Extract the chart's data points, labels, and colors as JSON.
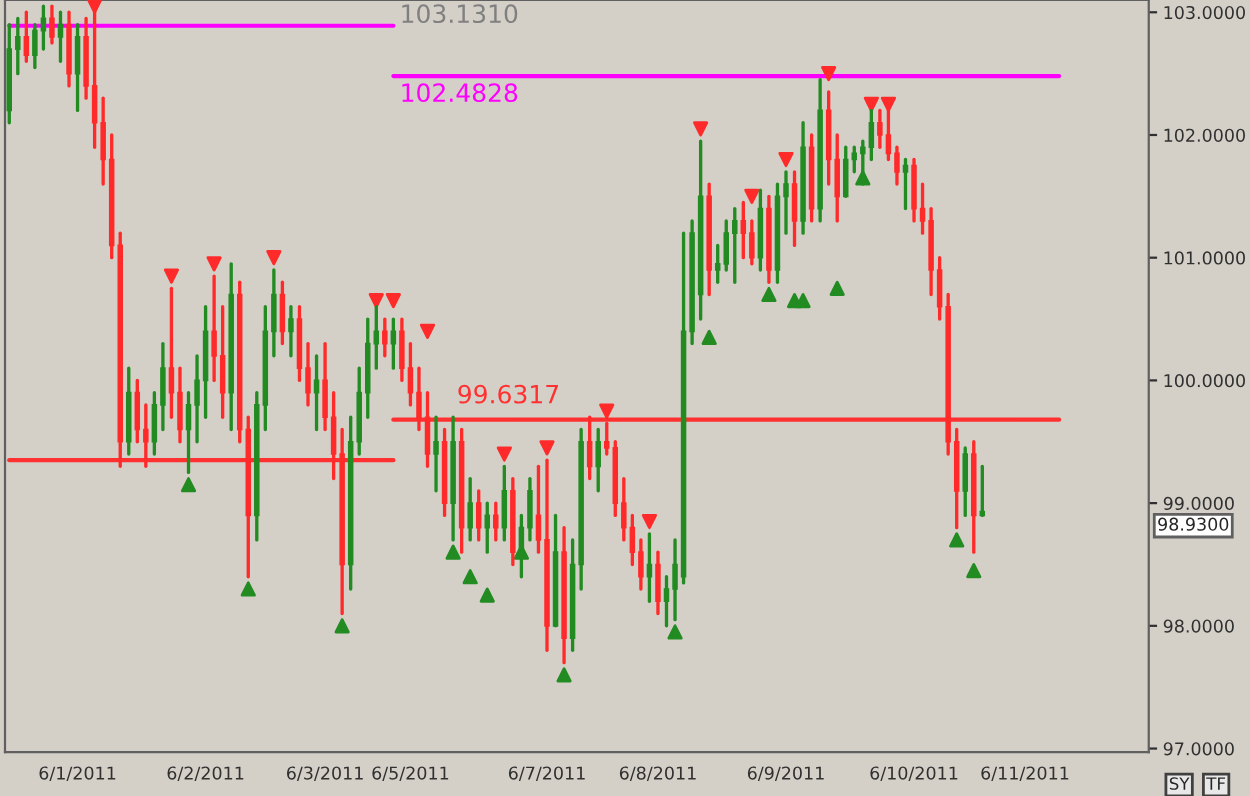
{
  "chart_data": {
    "type": "candlestick",
    "categories": [
      null,
      null,
      null,
      null,
      null,
      null,
      null,
      null,
      "6/1/2011",
      null,
      null,
      null,
      null,
      null,
      null,
      null,
      null,
      null,
      null,
      null,
      null,
      null,
      null,
      "6/2/2011",
      null,
      null,
      null,
      null,
      null,
      null,
      null,
      null,
      null,
      null,
      null,
      null,
      null,
      "6/3/2011",
      null,
      null,
      null,
      null,
      null,
      null,
      null,
      null,
      null,
      "6/5/2011",
      null,
      null,
      null,
      null,
      null,
      null,
      null,
      null,
      null,
      null,
      null,
      null,
      null,
      null,
      null,
      "6/7/2011",
      null,
      null,
      null,
      null,
      null,
      null,
      null,
      null,
      null,
      null,
      null,
      null,
      "6/8/2011",
      null,
      null,
      null,
      null,
      null,
      null,
      null,
      null,
      null,
      null,
      null,
      null,
      null,
      null,
      "6/9/2011",
      null,
      null,
      null,
      null,
      null,
      null,
      null,
      null,
      null,
      null,
      null,
      null,
      null,
      null,
      "6/10/2011",
      null,
      null,
      null,
      null,
      null,
      null,
      null,
      null,
      null,
      null,
      null,
      null,
      "6/11/2011",
      null,
      null,
      null,
      null
    ],
    "ohlc": [
      [
        102.2,
        102.9,
        102.1,
        102.7
      ],
      [
        102.7,
        102.95,
        102.5,
        102.8
      ],
      [
        102.8,
        103.0,
        102.6,
        102.65
      ],
      [
        102.65,
        102.9,
        102.55,
        102.85
      ],
      [
        102.85,
        103.05,
        102.7,
        102.95
      ],
      [
        102.95,
        103.05,
        102.75,
        102.8
      ],
      [
        102.8,
        103.0,
        102.6,
        102.9
      ],
      [
        102.9,
        103.0,
        102.4,
        102.5
      ],
      [
        102.5,
        102.9,
        102.2,
        102.8
      ],
      [
        102.8,
        102.95,
        102.3,
        102.4
      ],
      [
        102.4,
        103.0,
        101.9,
        102.1
      ],
      [
        102.1,
        102.3,
        101.6,
        101.8
      ],
      [
        101.8,
        102.0,
        101.0,
        101.1
      ],
      [
        101.1,
        101.2,
        99.3,
        99.5
      ],
      [
        99.5,
        100.1,
        99.4,
        99.9
      ],
      [
        99.9,
        100.0,
        99.5,
        99.6
      ],
      [
        99.6,
        99.8,
        99.3,
        99.5
      ],
      [
        99.5,
        99.9,
        99.4,
        99.8
      ],
      [
        99.8,
        100.3,
        99.6,
        100.1
      ],
      [
        100.1,
        100.75,
        99.7,
        99.9
      ],
      [
        99.9,
        100.1,
        99.5,
        99.6
      ],
      [
        99.6,
        99.9,
        99.25,
        99.8
      ],
      [
        99.8,
        100.2,
        99.5,
        100.0
      ],
      [
        100.0,
        100.6,
        99.7,
        100.4
      ],
      [
        100.4,
        100.85,
        100.0,
        100.2
      ],
      [
        100.2,
        100.6,
        99.7,
        99.9
      ],
      [
        99.9,
        100.95,
        99.6,
        100.7
      ],
      [
        100.7,
        100.8,
        99.5,
        99.6
      ],
      [
        99.6,
        99.7,
        98.4,
        98.9
      ],
      [
        98.9,
        99.9,
        98.7,
        99.8
      ],
      [
        99.8,
        100.6,
        99.6,
        100.4
      ],
      [
        100.4,
        100.9,
        100.2,
        100.7
      ],
      [
        100.7,
        100.8,
        100.3,
        100.4
      ],
      [
        100.4,
        100.6,
        100.2,
        100.5
      ],
      [
        100.5,
        100.6,
        100.0,
        100.1
      ],
      [
        100.1,
        100.3,
        99.8,
        99.9
      ],
      [
        99.9,
        100.2,
        99.6,
        100.0
      ],
      [
        100.0,
        100.3,
        99.6,
        99.7
      ],
      [
        99.7,
        99.9,
        99.2,
        99.4
      ],
      [
        99.4,
        99.6,
        98.1,
        98.5
      ],
      [
        98.5,
        99.7,
        98.3,
        99.5
      ],
      [
        99.5,
        100.1,
        99.4,
        99.9
      ],
      [
        99.9,
        100.5,
        99.7,
        100.3
      ],
      [
        100.3,
        100.6,
        100.1,
        100.4
      ],
      [
        100.4,
        100.5,
        100.2,
        100.3
      ],
      [
        100.3,
        100.5,
        100.1,
        100.4
      ],
      [
        100.4,
        100.5,
        100.0,
        100.1
      ],
      [
        100.1,
        100.3,
        99.8,
        99.9
      ],
      [
        99.9,
        100.1,
        99.6,
        99.7
      ],
      [
        99.7,
        99.9,
        99.3,
        99.4
      ],
      [
        99.4,
        99.7,
        99.1,
        99.5
      ],
      [
        99.5,
        99.6,
        98.9,
        99.0
      ],
      [
        99.0,
        99.7,
        98.7,
        99.5
      ],
      [
        99.5,
        99.6,
        98.6,
        98.8
      ],
      [
        98.8,
        99.2,
        98.7,
        99.0
      ],
      [
        99.0,
        99.1,
        98.7,
        98.8
      ],
      [
        98.8,
        99.0,
        98.6,
        98.9
      ],
      [
        98.9,
        99.0,
        98.7,
        98.8
      ],
      [
        98.8,
        99.3,
        98.7,
        99.1
      ],
      [
        99.1,
        99.2,
        98.5,
        98.6
      ],
      [
        98.6,
        98.9,
        98.4,
        98.8
      ],
      [
        98.8,
        99.2,
        98.7,
        99.1
      ],
      [
        98.9,
        99.3,
        98.6,
        98.7
      ],
      [
        98.7,
        99.35,
        97.8,
        98.0
      ],
      [
        98.0,
        98.9,
        98.0,
        98.6
      ],
      [
        98.6,
        98.8,
        97.7,
        97.9
      ],
      [
        97.9,
        98.7,
        97.8,
        98.5
      ],
      [
        98.5,
        99.6,
        98.3,
        99.5
      ],
      [
        99.5,
        99.7,
        99.2,
        99.3
      ],
      [
        99.3,
        99.6,
        99.1,
        99.5
      ],
      [
        99.5,
        99.65,
        99.4,
        99.45
      ],
      [
        99.45,
        99.5,
        98.9,
        99.0
      ],
      [
        99.0,
        99.2,
        98.7,
        98.8
      ],
      [
        98.8,
        98.9,
        98.5,
        98.6
      ],
      [
        98.6,
        98.7,
        98.3,
        98.4
      ],
      [
        98.4,
        98.75,
        98.2,
        98.5
      ],
      [
        98.5,
        98.6,
        98.1,
        98.2
      ],
      [
        98.2,
        98.4,
        98.0,
        98.3
      ],
      [
        98.3,
        98.7,
        98.05,
        98.5
      ],
      [
        98.4,
        101.2,
        98.35,
        100.4
      ],
      [
        100.4,
        101.3,
        100.3,
        101.2
      ],
      [
        100.7,
        101.95,
        100.5,
        101.5
      ],
      [
        101.5,
        101.6,
        100.7,
        100.9
      ],
      [
        100.9,
        101.1,
        100.8,
        100.95
      ],
      [
        100.95,
        101.3,
        100.9,
        101.2
      ],
      [
        101.2,
        101.4,
        100.8,
        101.3
      ],
      [
        101.3,
        101.45,
        101.0,
        101.2
      ],
      [
        101.2,
        101.3,
        100.95,
        101.0
      ],
      [
        101.0,
        101.55,
        100.9,
        101.4
      ],
      [
        101.4,
        101.5,
        100.8,
        100.9
      ],
      [
        100.9,
        101.6,
        100.8,
        101.5
      ],
      [
        101.5,
        101.7,
        101.2,
        101.6
      ],
      [
        101.6,
        101.7,
        101.1,
        101.3
      ],
      [
        101.3,
        102.1,
        101.2,
        101.9
      ],
      [
        101.9,
        102.0,
        101.3,
        101.4
      ],
      [
        101.4,
        102.45,
        101.3,
        102.2
      ],
      [
        102.2,
        102.35,
        101.6,
        101.8
      ],
      [
        101.8,
        102.0,
        101.3,
        101.5
      ],
      [
        101.5,
        101.9,
        101.5,
        101.8
      ],
      [
        101.8,
        101.9,
        101.7,
        101.85
      ],
      [
        101.85,
        101.95,
        101.6,
        101.9
      ],
      [
        101.9,
        102.2,
        101.8,
        102.1
      ],
      [
        102.1,
        102.2,
        101.9,
        102.0
      ],
      [
        102.0,
        102.2,
        101.8,
        101.85
      ],
      [
        101.85,
        101.9,
        101.6,
        101.7
      ],
      [
        101.7,
        101.8,
        101.4,
        101.75
      ],
      [
        101.75,
        101.8,
        101.3,
        101.4
      ],
      [
        101.4,
        101.6,
        101.2,
        101.3
      ],
      [
        101.3,
        101.4,
        100.7,
        100.9
      ],
      [
        100.9,
        101.0,
        100.5,
        100.6
      ],
      [
        100.6,
        100.7,
        99.4,
        99.5
      ],
      [
        99.5,
        99.6,
        98.8,
        99.1
      ],
      [
        99.1,
        99.45,
        98.9,
        99.4
      ],
      [
        99.4,
        99.5,
        98.6,
        98.9
      ],
      [
        98.9,
        99.3,
        98.9,
        98.93
      ],
      null,
      null,
      null,
      null,
      null,
      null,
      null,
      null,
      null
    ],
    "series": [
      {
        "type": "line",
        "color": "#ff00ff",
        "values": [
          102.89,
          102.89,
          102.89,
          102.89,
          102.89,
          102.89,
          102.89,
          102.89,
          102.89,
          102.89,
          102.89,
          102.89,
          102.89,
          102.89,
          102.89,
          102.89,
          102.89,
          102.89,
          102.89,
          102.89,
          102.89,
          102.89,
          102.89,
          102.89,
          102.89,
          102.89,
          102.89,
          102.89,
          102.89,
          102.89,
          102.89,
          102.89,
          102.89,
          102.89,
          102.89,
          102.89,
          102.89,
          102.89,
          102.89,
          102.89,
          102.89,
          102.89,
          102.89,
          102.89,
          102.89,
          102.89,
          null,
          null,
          null,
          null,
          null,
          null,
          null,
          null,
          null,
          null,
          null,
          null,
          null,
          null,
          null,
          null,
          null,
          null,
          null,
          null,
          null,
          null,
          null,
          null,
          null,
          null,
          null,
          null,
          null,
          null,
          null,
          null,
          null,
          null,
          null,
          null,
          null,
          null,
          null,
          null,
          null,
          null,
          null,
          null,
          null,
          null,
          null,
          null,
          null,
          null,
          null,
          null,
          null,
          null,
          null,
          null,
          null,
          null,
          null,
          null,
          null,
          null,
          null,
          null,
          null,
          null,
          null,
          null,
          null,
          null,
          null,
          null,
          null,
          null,
          null,
          null,
          null,
          null
        ]
      },
      {
        "type": "line",
        "color": "#ff00ff",
        "values": [
          null,
          null,
          null,
          null,
          null,
          null,
          null,
          null,
          null,
          null,
          null,
          null,
          null,
          null,
          null,
          null,
          null,
          null,
          null,
          null,
          null,
          null,
          null,
          null,
          null,
          null,
          null,
          null,
          null,
          null,
          null,
          null,
          null,
          null,
          null,
          null,
          null,
          null,
          null,
          null,
          null,
          null,
          null,
          null,
          null,
          102.48,
          102.48,
          102.48,
          102.48,
          102.48,
          102.48,
          102.48,
          102.48,
          102.48,
          102.48,
          102.48,
          102.48,
          102.48,
          102.48,
          102.48,
          102.48,
          102.48,
          102.48,
          102.48,
          102.48,
          102.48,
          102.48,
          102.48,
          102.48,
          102.48,
          102.48,
          102.48,
          102.48,
          102.48,
          102.48,
          102.48,
          102.48,
          102.48,
          102.48,
          102.48,
          102.48,
          102.48,
          102.48,
          102.48,
          102.48,
          102.48,
          102.48,
          102.48,
          102.48,
          102.48,
          102.48,
          102.48,
          102.48,
          102.48,
          102.48,
          102.48,
          102.48,
          102.48,
          102.48,
          102.48,
          102.48,
          102.48,
          102.48,
          102.48,
          102.48,
          102.48,
          102.48,
          102.48,
          102.48,
          102.48,
          102.48,
          102.48,
          102.48,
          102.48,
          102.48,
          102.48,
          102.48,
          102.48,
          102.48,
          102.48,
          102.48,
          102.48,
          102.48,
          102.48
        ]
      },
      {
        "type": "line",
        "color": "#ff3030",
        "values": [
          99.35,
          99.35,
          99.35,
          99.35,
          99.35,
          99.35,
          99.35,
          99.35,
          99.35,
          99.35,
          99.35,
          99.35,
          99.35,
          99.35,
          99.35,
          99.35,
          99.35,
          99.35,
          99.35,
          99.35,
          99.35,
          99.35,
          99.35,
          99.35,
          99.35,
          99.35,
          99.35,
          99.35,
          99.35,
          99.35,
          99.35,
          99.35,
          99.35,
          99.35,
          99.35,
          99.35,
          99.35,
          99.35,
          99.35,
          99.35,
          99.35,
          99.35,
          99.35,
          99.35,
          99.35,
          99.35,
          null,
          null,
          null,
          null,
          null,
          null,
          null,
          null,
          null,
          null,
          null,
          null,
          null,
          null,
          null,
          null,
          null,
          null,
          null,
          null,
          null,
          null,
          null,
          null,
          null,
          null,
          null,
          null,
          null,
          null,
          null,
          null,
          null,
          null,
          null,
          null,
          null,
          null,
          null,
          null,
          null,
          null,
          null,
          null,
          null,
          null,
          null,
          null,
          null,
          null,
          null,
          null,
          null,
          null,
          null,
          null,
          null,
          null,
          null,
          null,
          null,
          null,
          null,
          null,
          null,
          null,
          null,
          null,
          null,
          null,
          null,
          null,
          null,
          null,
          null,
          null,
          null,
          null
        ]
      },
      {
        "type": "line",
        "color": "#ff3030",
        "values": [
          null,
          null,
          null,
          null,
          null,
          null,
          null,
          null,
          null,
          null,
          null,
          null,
          null,
          null,
          null,
          null,
          null,
          null,
          null,
          null,
          null,
          null,
          null,
          null,
          null,
          null,
          null,
          null,
          null,
          null,
          null,
          null,
          null,
          null,
          null,
          null,
          null,
          null,
          null,
          null,
          null,
          null,
          null,
          null,
          null,
          99.68,
          99.68,
          99.68,
          99.68,
          99.68,
          99.68,
          99.68,
          99.68,
          99.68,
          99.68,
          99.68,
          99.68,
          99.68,
          99.68,
          99.68,
          99.68,
          99.68,
          99.68,
          99.68,
          99.68,
          99.68,
          99.68,
          99.68,
          99.68,
          99.68,
          99.68,
          99.68,
          99.68,
          99.68,
          99.68,
          99.68,
          99.68,
          99.68,
          99.68,
          99.68,
          99.68,
          99.68,
          99.68,
          99.68,
          99.68,
          99.68,
          99.68,
          99.68,
          99.68,
          99.68,
          99.68,
          99.68,
          99.68,
          99.68,
          99.68,
          99.68,
          99.68,
          99.68,
          99.68,
          99.68,
          99.68,
          99.68,
          99.68,
          99.68,
          99.68,
          99.68,
          99.68,
          99.68,
          99.68,
          99.68,
          99.68,
          99.68,
          99.68,
          99.68,
          99.68,
          99.68,
          99.68,
          99.68,
          99.68,
          99.68,
          99.68,
          99.68,
          99.68,
          99.68
        ]
      },
      {
        "type": "scatter",
        "marker": "triangle_down",
        "color": "#ff2a2a",
        "values": [
          null,
          null,
          null,
          null,
          null,
          null,
          null,
          null,
          null,
          null,
          103.05,
          null,
          null,
          null,
          null,
          null,
          null,
          null,
          null,
          100.85,
          null,
          null,
          null,
          null,
          100.95,
          null,
          null,
          null,
          null,
          null,
          null,
          101.0,
          null,
          null,
          null,
          null,
          null,
          null,
          null,
          null,
          null,
          null,
          null,
          100.65,
          null,
          100.65,
          null,
          null,
          null,
          100.4,
          null,
          null,
          null,
          null,
          null,
          null,
          null,
          null,
          99.4,
          null,
          null,
          null,
          null,
          99.45,
          null,
          null,
          null,
          null,
          null,
          null,
          99.75,
          null,
          null,
          null,
          null,
          98.85,
          null,
          null,
          null,
          null,
          null,
          102.05,
          null,
          null,
          null,
          null,
          null,
          101.5,
          null,
          null,
          null,
          101.8,
          null,
          null,
          null,
          null,
          102.5,
          null,
          null,
          null,
          null,
          102.25,
          null,
          102.25,
          null,
          null,
          null,
          null,
          null,
          null,
          null,
          null,
          null,
          null,
          null,
          null,
          null,
          null,
          null,
          null,
          null,
          null,
          null,
          null
        ]
      },
      {
        "type": "scatter",
        "marker": "triangle",
        "color": "#228b22",
        "values": [
          null,
          null,
          null,
          null,
          null,
          null,
          null,
          null,
          null,
          null,
          null,
          null,
          null,
          null,
          null,
          null,
          null,
          null,
          null,
          null,
          null,
          99.15,
          null,
          null,
          null,
          null,
          null,
          null,
          98.3,
          null,
          null,
          null,
          null,
          null,
          null,
          null,
          null,
          null,
          null,
          98.0,
          null,
          null,
          null,
          null,
          null,
          null,
          null,
          null,
          null,
          null,
          null,
          null,
          98.6,
          null,
          98.4,
          null,
          98.25,
          null,
          null,
          null,
          98.6,
          null,
          null,
          null,
          null,
          97.6,
          null,
          null,
          null,
          null,
          null,
          null,
          null,
          null,
          null,
          null,
          null,
          null,
          97.95,
          null,
          null,
          null,
          100.35,
          null,
          null,
          null,
          null,
          null,
          null,
          100.7,
          null,
          null,
          100.65,
          100.65,
          null,
          null,
          null,
          100.75,
          null,
          null,
          101.65,
          null,
          null,
          null,
          null,
          null,
          null,
          null,
          null,
          null,
          null,
          98.7,
          null,
          98.45,
          null,
          null,
          null,
          null,
          null,
          null,
          null,
          null,
          null,
          null
        ]
      }
    ],
    "annotations": [
      "103.1310",
      "102.4828",
      "99.6317",
      "98.9300",
      "SY",
      "TF"
    ],
    "ylim": [
      96.97,
      103.1
    ],
    "yticks": [
      {
        "value": 97,
        "label": "97.0000"
      },
      {
        "value": 98,
        "label": "98.0000"
      },
      {
        "value": 99,
        "label": "99.0000"
      },
      {
        "value": 100,
        "label": "100.0000"
      },
      {
        "value": 101,
        "label": "101.0000"
      },
      {
        "value": 102,
        "label": "102.0000"
      },
      {
        "value": 103,
        "label": "103.0000"
      }
    ],
    "grid": false,
    "legend": false
  }
}
